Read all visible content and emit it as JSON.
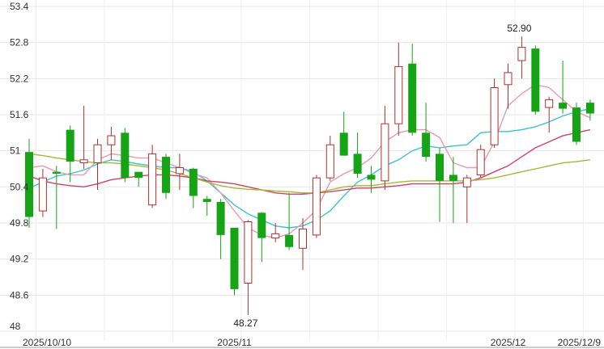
{
  "chart_data": {
    "type": "candlestick",
    "ylim": [
      48,
      53.4
    ],
    "y_ticks": [
      "53.4",
      "52.8",
      "52.2",
      "51.6",
      "51",
      "50.4",
      "49.8",
      "49.2",
      "48.6",
      "48"
    ],
    "x_ticks": [
      {
        "index": 0,
        "label": "2025/10/10"
      },
      {
        "index": 15,
        "label": "2025/11"
      },
      {
        "index": 35,
        "label": "2025/12"
      },
      {
        "index": 41,
        "label": "2025/12/9"
      }
    ],
    "grid": true,
    "up_color": "#b03030",
    "down_color": "#16a316",
    "candles": [
      {
        "o": 50.98,
        "h": 51.2,
        "l": 49.72,
        "c": 49.9
      },
      {
        "o": 50.0,
        "h": 50.7,
        "l": 49.9,
        "c": 50.55
      },
      {
        "o": 50.65,
        "h": 50.75,
        "l": 49.7,
        "c": 50.62
      },
      {
        "o": 51.35,
        "h": 51.42,
        "l": 50.48,
        "c": 50.82
      },
      {
        "o": 50.8,
        "h": 51.75,
        "l": 50.7,
        "c": 50.85
      },
      {
        "o": 50.8,
        "h": 51.2,
        "l": 50.35,
        "c": 51.1
      },
      {
        "o": 51.1,
        "h": 51.4,
        "l": 50.85,
        "c": 51.25
      },
      {
        "o": 51.3,
        "h": 51.38,
        "l": 50.48,
        "c": 50.55
      },
      {
        "o": 50.65,
        "h": 50.65,
        "l": 50.4,
        "c": 50.55
      },
      {
        "o": 50.1,
        "h": 51.1,
        "l": 50.05,
        "c": 50.95
      },
      {
        "o": 50.9,
        "h": 50.95,
        "l": 50.2,
        "c": 50.3
      },
      {
        "o": 50.62,
        "h": 50.95,
        "l": 50.35,
        "c": 50.72
      },
      {
        "o": 50.7,
        "h": 50.72,
        "l": 50.05,
        "c": 50.25
      },
      {
        "o": 50.2,
        "h": 50.25,
        "l": 49.92,
        "c": 50.15
      },
      {
        "o": 50.15,
        "h": 50.2,
        "l": 49.2,
        "c": 49.6
      },
      {
        "o": 49.72,
        "h": 49.72,
        "l": 48.6,
        "c": 48.7
      },
      {
        "o": 48.8,
        "h": 49.85,
        "l": 48.27,
        "c": 49.82
      },
      {
        "o": 49.97,
        "h": 49.98,
        "l": 49.15,
        "c": 49.55
      },
      {
        "o": 49.55,
        "h": 49.8,
        "l": 49.48,
        "c": 49.62
      },
      {
        "o": 49.6,
        "h": 50.3,
        "l": 49.35,
        "c": 49.4
      },
      {
        "o": 49.38,
        "h": 49.88,
        "l": 49.02,
        "c": 49.7
      },
      {
        "o": 49.6,
        "h": 50.6,
        "l": 49.55,
        "c": 50.55
      },
      {
        "o": 50.55,
        "h": 51.25,
        "l": 50.5,
        "c": 51.1
      },
      {
        "o": 51.3,
        "h": 51.65,
        "l": 50.92,
        "c": 50.92
      },
      {
        "o": 50.95,
        "h": 51.3,
        "l": 50.55,
        "c": 50.62
      },
      {
        "o": 50.6,
        "h": 50.75,
        "l": 50.3,
        "c": 50.52
      },
      {
        "o": 50.5,
        "h": 51.75,
        "l": 50.35,
        "c": 51.45
      },
      {
        "o": 51.45,
        "h": 52.8,
        "l": 51.25,
        "c": 52.4
      },
      {
        "o": 52.45,
        "h": 52.78,
        "l": 51.25,
        "c": 51.3
      },
      {
        "o": 51.3,
        "h": 51.8,
        "l": 50.82,
        "c": 50.9
      },
      {
        "o": 50.95,
        "h": 51.05,
        "l": 49.82,
        "c": 50.5
      },
      {
        "o": 50.6,
        "h": 50.9,
        "l": 49.8,
        "c": 50.5
      },
      {
        "o": 50.4,
        "h": 50.6,
        "l": 49.8,
        "c": 50.55
      },
      {
        "o": 50.6,
        "h": 51.1,
        "l": 50.55,
        "c": 51.02
      },
      {
        "o": 51.1,
        "h": 52.2,
        "l": 51.05,
        "c": 52.05
      },
      {
        "o": 52.1,
        "h": 52.45,
        "l": 51.7,
        "c": 52.3
      },
      {
        "o": 52.5,
        "h": 52.9,
        "l": 52.2,
        "c": 52.72
      },
      {
        "o": 52.7,
        "h": 52.75,
        "l": 51.6,
        "c": 51.65
      },
      {
        "o": 51.72,
        "h": 51.9,
        "l": 51.3,
        "c": 51.85
      },
      {
        "o": 51.8,
        "h": 52.5,
        "l": 51.62,
        "c": 51.7
      },
      {
        "o": 51.72,
        "h": 51.8,
        "l": 51.1,
        "c": 51.15
      },
      {
        "o": 51.8,
        "h": 51.85,
        "l": 51.5,
        "c": 51.62
      }
    ],
    "series": [
      {
        "color": "#3cc2d2",
        "values": [
          50.38,
          50.48,
          50.58,
          50.62,
          50.68,
          50.78,
          50.85,
          50.82,
          50.78,
          50.75,
          50.72,
          50.72,
          50.65,
          50.5,
          50.3,
          50.1,
          49.95,
          49.85,
          49.75,
          49.72,
          49.75,
          49.85,
          50.0,
          50.25,
          50.48,
          50.6,
          50.75,
          50.85,
          51.0,
          51.08,
          51.05,
          51.08,
          51.1,
          51.3,
          51.32,
          51.32,
          51.35,
          51.4,
          51.48,
          51.58,
          51.65,
          51.7
        ]
      },
      {
        "color": "#e79ab2",
        "values": [
          50.72,
          50.75,
          50.65,
          50.6,
          50.6,
          50.85,
          50.95,
          50.92,
          50.88,
          50.88,
          50.8,
          50.72,
          50.62,
          50.55,
          50.3,
          50.0,
          49.72,
          49.6,
          49.55,
          49.62,
          49.8,
          50.02,
          50.48,
          50.62,
          50.72,
          50.88,
          51.15,
          51.3,
          51.35,
          51.35,
          51.22,
          50.8,
          50.72,
          50.72,
          51.15,
          51.75,
          51.95,
          52.1,
          52.05,
          51.85,
          51.65,
          51.55
        ]
      },
      {
        "color": "#d0416c",
        "values": [
          50.58,
          50.5,
          50.45,
          50.42,
          50.4,
          50.45,
          50.52,
          50.55,
          50.58,
          50.6,
          50.6,
          50.58,
          50.55,
          50.5,
          50.48,
          50.45,
          50.4,
          50.35,
          50.3,
          50.28,
          50.28,
          50.3,
          50.32,
          50.35,
          50.38,
          50.38,
          50.4,
          50.42,
          50.45,
          50.45,
          50.45,
          50.45,
          50.48,
          50.55,
          50.65,
          50.75,
          50.9,
          51.05,
          51.15,
          51.25,
          51.3,
          51.35
        ]
      },
      {
        "color": "#a5b936",
        "values": [
          50.95,
          50.92,
          50.88,
          50.85,
          50.82,
          50.8,
          50.8,
          50.78,
          50.75,
          50.72,
          50.68,
          50.62,
          50.55,
          50.48,
          50.42,
          50.38,
          50.36,
          50.35,
          50.33,
          50.32,
          50.3,
          50.3,
          50.35,
          50.4,
          50.42,
          50.42,
          50.45,
          50.48,
          50.5,
          50.5,
          50.5,
          50.5,
          50.5,
          50.52,
          50.55,
          50.6,
          50.65,
          50.7,
          50.75,
          50.8,
          50.82,
          50.85
        ]
      }
    ],
    "annotations": [
      {
        "text": "52.90",
        "index": 36,
        "value": 52.9,
        "placement": "above"
      },
      {
        "text": "48.27",
        "index": 16,
        "value": 48.27,
        "placement": "below"
      }
    ]
  }
}
